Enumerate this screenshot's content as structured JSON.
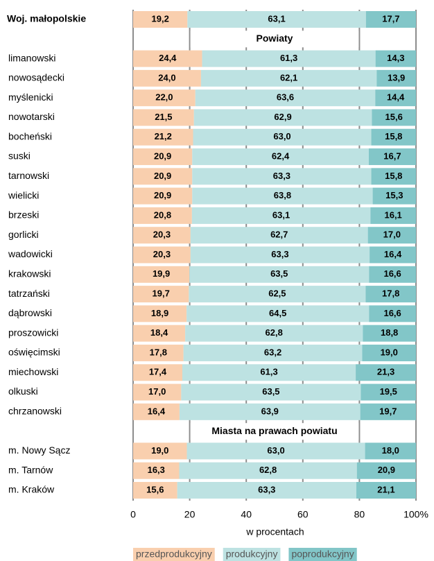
{
  "chart_data": {
    "type": "stacked_barh",
    "categories": [
      "Woj. małopolskie",
      null,
      "limanowski",
      "nowosądecki",
      "myślenicki",
      "nowotarski",
      "bocheński",
      "suski",
      "tarnowski",
      "wielicki",
      "brzeski",
      "gorlicki",
      "wadowicki",
      "krakowski",
      "tatrzański",
      "dąbrowski",
      "proszowicki",
      "oświęcimski",
      "miechowski",
      "olkuski",
      "chrzanowski",
      null,
      "m. Nowy Sącz",
      "m. Tarnów",
      "m. Kraków"
    ],
    "annotations": [
      "Powiaty",
      "Miasta na prawach powiatu"
    ],
    "series": [
      {
        "name": "przedprodukcyjny",
        "color": "#f9cfae",
        "values": [
          19.2,
          null,
          24.4,
          24.0,
          22.0,
          21.5,
          21.2,
          20.9,
          20.9,
          20.9,
          20.8,
          20.3,
          20.3,
          19.9,
          19.7,
          18.9,
          18.4,
          17.8,
          17.4,
          17.0,
          16.4,
          null,
          19.0,
          16.3,
          15.6
        ],
        "value_labels": [
          "19,2",
          null,
          "24,4",
          "24,0",
          "22,0",
          "21,5",
          "21,2",
          "20,9",
          "20,9",
          "20,9",
          "20,8",
          "20,3",
          "20,3",
          "19,9",
          "19,7",
          "18,9",
          "18,4",
          "17,8",
          "17,4",
          "17,0",
          "16,4",
          null,
          "19,0",
          "16,3",
          "15,6"
        ]
      },
      {
        "name": "produkcyjny",
        "color": "#bde2e2",
        "values": [
          63.1,
          null,
          61.3,
          62.1,
          63.6,
          62.9,
          63.0,
          62.4,
          63.3,
          63.8,
          63.1,
          62.7,
          63.3,
          63.5,
          62.5,
          64.5,
          62.8,
          63.2,
          61.3,
          63.5,
          63.9,
          null,
          63.0,
          62.8,
          63.3
        ],
        "value_labels": [
          "63,1",
          null,
          "61,3",
          "62,1",
          "63,6",
          "62,9",
          "63,0",
          "62,4",
          "63,3",
          "63,8",
          "63,1",
          "62,7",
          "63,3",
          "63,5",
          "62,5",
          "64,5",
          "62,8",
          "63,2",
          "61,3",
          "63,5",
          "63,9",
          null,
          "63,0",
          "62,8",
          "63,3"
        ]
      },
      {
        "name": "poprodukcyjny",
        "color": "#82c6c8",
        "values": [
          17.7,
          null,
          14.3,
          13.9,
          14.4,
          15.6,
          15.8,
          16.7,
          15.8,
          15.3,
          16.1,
          17.0,
          16.4,
          16.6,
          17.8,
          16.6,
          18.8,
          19.0,
          21.3,
          19.5,
          19.7,
          null,
          18.0,
          20.9,
          21.1
        ],
        "value_labels": [
          "17,7",
          null,
          "14,3",
          "13,9",
          "14,4",
          "15,6",
          "15,8",
          "16,7",
          "15,8",
          "15,3",
          "16,1",
          "17,0",
          "16,4",
          "16,6",
          "17,8",
          "16,6",
          "18,8",
          "19,0",
          "21,3",
          "19,5",
          "19,7",
          null,
          "18,0",
          "20,9",
          "21,1"
        ]
      }
    ],
    "xlabel": "w procentach",
    "xlim": [
      0,
      100
    ],
    "xticks": [
      0,
      20,
      40,
      60,
      80,
      {
        "value": 100,
        "label": "100%"
      }
    ],
    "grid": true
  }
}
